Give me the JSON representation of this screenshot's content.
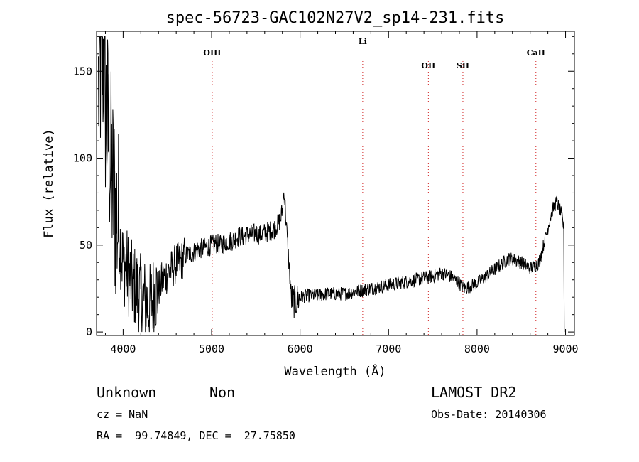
{
  "chart_data": {
    "type": "line",
    "title": "spec-56723-GAC102N27V2_sp14-231.fits",
    "xlabel": "Wavelength (Å)",
    "ylabel": "Flux (relative)",
    "xlim": [
      3700,
      9100
    ],
    "ylim": [
      -2,
      173
    ],
    "xticks": [
      4000,
      5000,
      6000,
      7000,
      8000,
      9000
    ],
    "yticks": [
      0,
      50,
      100,
      150
    ],
    "grid": false,
    "series": [
      {
        "x": [
          3720,
          3740,
          3760,
          3780,
          3800,
          3820,
          3840,
          3860,
          3880,
          3900,
          3920,
          3950,
          3980,
          4000,
          4050,
          4100,
          4150,
          4200,
          4250,
          4300,
          4350,
          4400,
          4450,
          4500,
          4550,
          4600,
          4650,
          4700,
          4750,
          4800,
          4850,
          4900,
          4950,
          5000,
          5050,
          5100,
          5150,
          5200,
          5250,
          5300,
          5350,
          5400,
          5450,
          5500,
          5550,
          5600,
          5650,
          5700,
          5750,
          5780,
          5800,
          5820,
          5840,
          5860,
          5880,
          5900,
          5920,
          5940,
          5960,
          6000,
          6100,
          6200,
          6300,
          6400,
          6500,
          6600,
          6700,
          6800,
          6900,
          7000,
          7100,
          7200,
          7300,
          7400,
          7500,
          7600,
          7700,
          7800,
          7850,
          7900,
          8000,
          8100,
          8200,
          8300,
          8350,
          8400,
          8500,
          8600,
          8650,
          8700,
          8750,
          8800,
          8850,
          8900,
          8950,
          8980
        ],
        "y": [
          140,
          150,
          155,
          160,
          130,
          120,
          110,
          95,
          85,
          75,
          70,
          60,
          45,
          40,
          35,
          28,
          25,
          20,
          18,
          15,
          22,
          25,
          30,
          34,
          36,
          40,
          40,
          44,
          45,
          46,
          48,
          48,
          49,
          50,
          51,
          50,
          52,
          52,
          53,
          55,
          55,
          56,
          56,
          57,
          56,
          57,
          58,
          59,
          62,
          65,
          70,
          82,
          65,
          50,
          35,
          20,
          18,
          17,
          18,
          20,
          21,
          21,
          22,
          22,
          22,
          23,
          24,
          25,
          26,
          27,
          28,
          29,
          30,
          31,
          32,
          34,
          32,
          28,
          25,
          26,
          28,
          32,
          36,
          40,
          42,
          42,
          40,
          37,
          38,
          40,
          50,
          60,
          70,
          75,
          68,
          60
        ]
      }
    ],
    "line_markers": [
      {
        "label": "OIII",
        "x": 5007
      },
      {
        "label": "Li",
        "x": 6708
      },
      {
        "label": "OII",
        "x": 7450
      },
      {
        "label": "SII",
        "x": 7840
      },
      {
        "label": "CaII",
        "x": 8665
      }
    ]
  },
  "info": {
    "class": "Unknown",
    "subclass": "Non",
    "survey": "LAMOST DR2",
    "cz": "cz = NaN",
    "obs_date": "Obs-Date: 20140306",
    "coords": "RA =  99.74849, DEC =  27.75850"
  }
}
